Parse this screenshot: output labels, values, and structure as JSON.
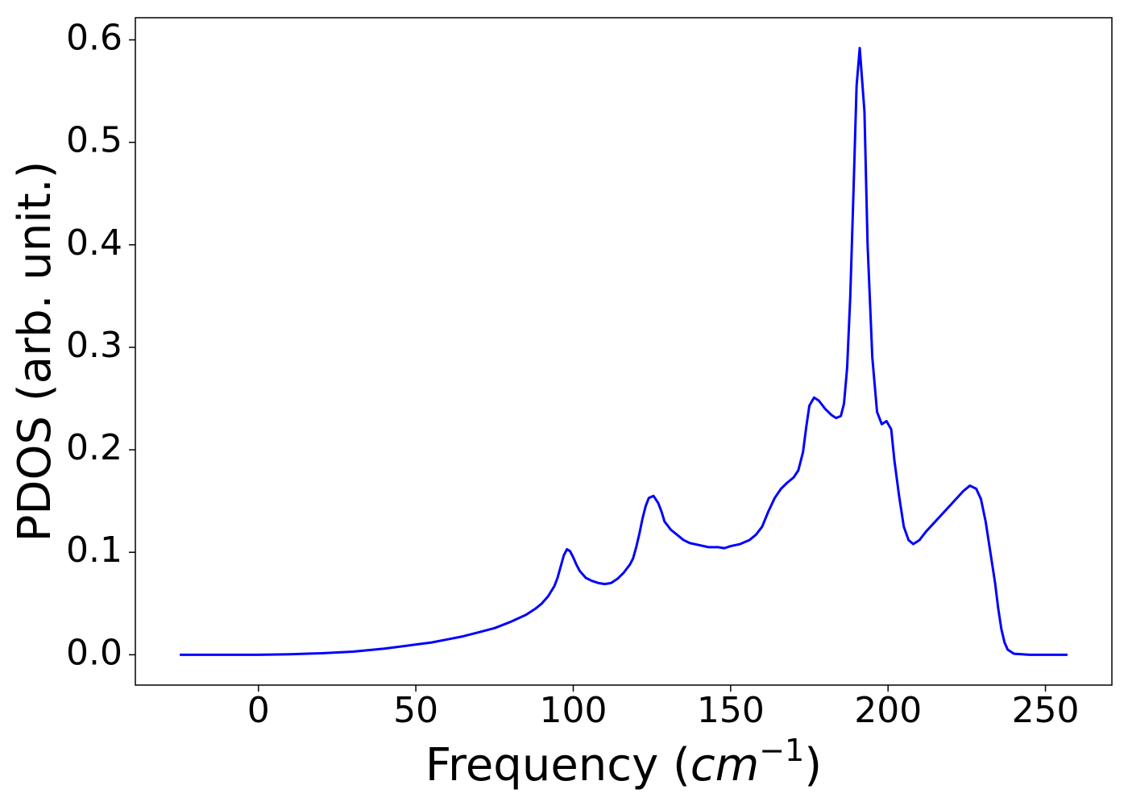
{
  "chart_data": {
    "type": "line",
    "xlabel": [
      "Frequency (",
      "cm",
      "−1",
      ")"
    ],
    "ylabel": "PDOS (arb. unit.)",
    "xlim": [
      -39.1,
      271.1
    ],
    "ylim": [
      -0.0296,
      0.6216
    ],
    "xticks": [
      0,
      50,
      100,
      150,
      200,
      250
    ],
    "yticks": [
      {
        "value": 0,
        "label": "0.0"
      },
      0.1,
      0.2,
      0.3,
      0.4,
      0.5,
      0.6
    ],
    "grid": false,
    "x": [
      -25,
      0,
      10,
      20,
      30,
      40,
      50,
      55,
      60,
      65,
      70,
      75,
      80,
      85,
      88,
      90,
      92,
      94,
      95,
      96,
      97,
      98,
      99,
      100,
      101,
      102,
      104,
      106,
      108,
      110,
      112,
      114,
      116,
      118,
      119,
      120,
      121,
      122,
      123,
      124,
      125.5,
      127,
      128,
      129,
      131,
      133,
      135,
      137,
      140,
      143,
      146,
      148,
      150,
      153,
      156,
      158,
      160,
      162,
      164,
      166,
      168,
      170,
      171.5,
      173,
      174,
      175,
      176.5,
      178,
      180,
      182,
      183.5,
      185,
      186,
      187,
      188,
      189,
      190,
      191,
      192.5,
      193.5,
      195,
      196.5,
      198,
      199.5,
      201,
      202,
      203.5,
      205,
      206.5,
      208,
      210,
      212,
      215,
      218,
      221,
      224,
      226,
      228,
      229.5,
      231,
      232.5,
      234,
      235,
      236,
      237,
      238,
      240,
      245,
      257
    ],
    "series": [
      {
        "name": "PDOS",
        "color": "#0000ff",
        "values": [
          0,
          0,
          0.0005,
          0.0015,
          0.003,
          0.006,
          0.01,
          0.012,
          0.015,
          0.018,
          0.022,
          0.026,
          0.032,
          0.039,
          0.045,
          0.05,
          0.057,
          0.067,
          0.075,
          0.086,
          0.097,
          0.103,
          0.101,
          0.095,
          0.088,
          0.082,
          0.075,
          0.072,
          0.07,
          0.069,
          0.07,
          0.074,
          0.08,
          0.088,
          0.094,
          0.105,
          0.118,
          0.133,
          0.145,
          0.153,
          0.155,
          0.148,
          0.14,
          0.13,
          0.122,
          0.117,
          0.112,
          0.109,
          0.107,
          0.105,
          0.105,
          0.104,
          0.106,
          0.108,
          0.112,
          0.117,
          0.125,
          0.14,
          0.153,
          0.162,
          0.168,
          0.173,
          0.18,
          0.198,
          0.222,
          0.243,
          0.251,
          0.248,
          0.24,
          0.234,
          0.231,
          0.233,
          0.245,
          0.28,
          0.35,
          0.45,
          0.555,
          0.592,
          0.53,
          0.4,
          0.29,
          0.237,
          0.225,
          0.228,
          0.22,
          0.19,
          0.155,
          0.125,
          0.112,
          0.108,
          0.112,
          0.12,
          0.13,
          0.14,
          0.15,
          0.16,
          0.165,
          0.162,
          0.152,
          0.13,
          0.1,
          0.07,
          0.045,
          0.025,
          0.012,
          0.005,
          0.001,
          0,
          0
        ]
      }
    ]
  }
}
